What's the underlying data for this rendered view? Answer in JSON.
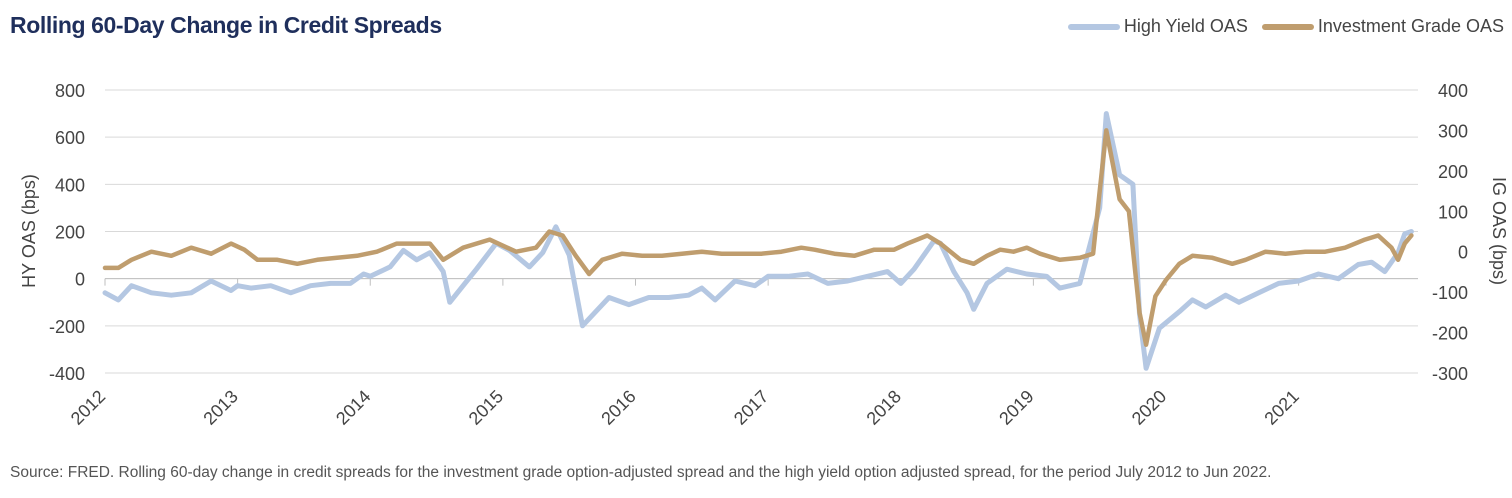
{
  "chart_data": {
    "type": "line",
    "title": "Rolling 60-Day Change in Credit Spreads",
    "ylabel_left": "HY OAS (bps)",
    "ylabel_right": "IG OAS (bps)",
    "ylim_left": [
      -400,
      800
    ],
    "ylim_right": [
      -300,
      400
    ],
    "yticks_left": [
      "800",
      "600",
      "400",
      "200",
      "0",
      "-200",
      "-400"
    ],
    "yticks_right": [
      "400",
      "300",
      "200",
      "100",
      "0",
      "-100",
      "-200",
      "-300"
    ],
    "xticks": [
      "2012",
      "2013",
      "2014",
      "2015",
      "2016",
      "2017",
      "2018",
      "2019",
      "2020",
      "2021"
    ],
    "grid": true,
    "legend_position": "top-right",
    "series": [
      {
        "name": "High Yield OAS",
        "axis": "left",
        "color": "#b4c7e2",
        "points": [
          [
            2012.0,
            -60
          ],
          [
            2012.1,
            -90
          ],
          [
            2012.2,
            -30
          ],
          [
            2012.35,
            -60
          ],
          [
            2012.5,
            -70
          ],
          [
            2012.65,
            -60
          ],
          [
            2012.8,
            -10
          ],
          [
            2012.95,
            -50
          ],
          [
            2013.0,
            -30
          ],
          [
            2013.1,
            -40
          ],
          [
            2013.25,
            -30
          ],
          [
            2013.4,
            -60
          ],
          [
            2013.55,
            -30
          ],
          [
            2013.7,
            -20
          ],
          [
            2013.85,
            -20
          ],
          [
            2013.95,
            20
          ],
          [
            2014.0,
            10
          ],
          [
            2014.15,
            50
          ],
          [
            2014.25,
            120
          ],
          [
            2014.35,
            80
          ],
          [
            2014.45,
            110
          ],
          [
            2014.55,
            30
          ],
          [
            2014.6,
            -100
          ],
          [
            2014.7,
            -30
          ],
          [
            2014.8,
            40
          ],
          [
            2014.95,
            150
          ],
          [
            2015.05,
            120
          ],
          [
            2015.2,
            50
          ],
          [
            2015.3,
            110
          ],
          [
            2015.4,
            220
          ],
          [
            2015.5,
            100
          ],
          [
            2015.6,
            -200
          ],
          [
            2015.7,
            -140
          ],
          [
            2015.8,
            -80
          ],
          [
            2015.95,
            -110
          ],
          [
            2016.1,
            -80
          ],
          [
            2016.25,
            -80
          ],
          [
            2016.4,
            -70
          ],
          [
            2016.5,
            -40
          ],
          [
            2016.6,
            -90
          ],
          [
            2016.75,
            -10
          ],
          [
            2016.9,
            -30
          ],
          [
            2017.0,
            10
          ],
          [
            2017.15,
            10
          ],
          [
            2017.3,
            20
          ],
          [
            2017.45,
            -20
          ],
          [
            2017.6,
            -10
          ],
          [
            2017.75,
            10
          ],
          [
            2017.9,
            30
          ],
          [
            2018.0,
            -20
          ],
          [
            2018.1,
            40
          ],
          [
            2018.25,
            160
          ],
          [
            2018.3,
            150
          ],
          [
            2018.4,
            30
          ],
          [
            2018.5,
            -60
          ],
          [
            2018.55,
            -130
          ],
          [
            2018.65,
            -20
          ],
          [
            2018.8,
            40
          ],
          [
            2018.95,
            20
          ],
          [
            2019.1,
            10
          ],
          [
            2019.2,
            -40
          ],
          [
            2019.35,
            -20
          ],
          [
            2019.5,
            300
          ],
          [
            2019.55,
            700
          ],
          [
            2019.65,
            440
          ],
          [
            2019.75,
            400
          ],
          [
            2019.8,
            -150
          ],
          [
            2019.85,
            -380
          ],
          [
            2019.95,
            -210
          ],
          [
            2020.1,
            -140
          ],
          [
            2020.2,
            -90
          ],
          [
            2020.3,
            -120
          ],
          [
            2020.45,
            -70
          ],
          [
            2020.55,
            -100
          ],
          [
            2020.7,
            -60
          ],
          [
            2020.85,
            -20
          ],
          [
            2021.0,
            -10
          ],
          [
            2021.15,
            20
          ],
          [
            2021.3,
            0
          ],
          [
            2021.45,
            60
          ],
          [
            2021.55,
            70
          ],
          [
            2021.65,
            30
          ],
          [
            2021.75,
            110
          ],
          [
            2021.8,
            190
          ],
          [
            2021.85,
            200
          ]
        ]
      },
      {
        "name": "Investment Grade OAS",
        "axis": "right",
        "color": "#bf9d6e",
        "points": [
          [
            2012.0,
            -40
          ],
          [
            2012.1,
            -40
          ],
          [
            2012.2,
            -20
          ],
          [
            2012.35,
            0
          ],
          [
            2012.5,
            -10
          ],
          [
            2012.65,
            10
          ],
          [
            2012.8,
            -5
          ],
          [
            2012.95,
            20
          ],
          [
            2013.05,
            5
          ],
          [
            2013.15,
            -20
          ],
          [
            2013.3,
            -20
          ],
          [
            2013.45,
            -30
          ],
          [
            2013.6,
            -20
          ],
          [
            2013.75,
            -15
          ],
          [
            2013.9,
            -10
          ],
          [
            2014.05,
            0
          ],
          [
            2014.2,
            20
          ],
          [
            2014.3,
            20
          ],
          [
            2014.45,
            20
          ],
          [
            2014.55,
            -20
          ],
          [
            2014.7,
            10
          ],
          [
            2014.9,
            30
          ],
          [
            2015.0,
            15
          ],
          [
            2015.1,
            0
          ],
          [
            2015.25,
            10
          ],
          [
            2015.35,
            50
          ],
          [
            2015.45,
            40
          ],
          [
            2015.55,
            -10
          ],
          [
            2015.65,
            -55
          ],
          [
            2015.75,
            -20
          ],
          [
            2015.9,
            -5
          ],
          [
            2016.05,
            -10
          ],
          [
            2016.2,
            -10
          ],
          [
            2016.35,
            -5
          ],
          [
            2016.5,
            0
          ],
          [
            2016.65,
            -5
          ],
          [
            2016.8,
            -5
          ],
          [
            2016.95,
            -5
          ],
          [
            2017.1,
            0
          ],
          [
            2017.25,
            10
          ],
          [
            2017.35,
            5
          ],
          [
            2017.5,
            -5
          ],
          [
            2017.65,
            -10
          ],
          [
            2017.8,
            5
          ],
          [
            2017.95,
            5
          ],
          [
            2018.05,
            20
          ],
          [
            2018.2,
            40
          ],
          [
            2018.3,
            20
          ],
          [
            2018.45,
            -20
          ],
          [
            2018.55,
            -30
          ],
          [
            2018.65,
            -10
          ],
          [
            2018.75,
            5
          ],
          [
            2018.85,
            0
          ],
          [
            2018.95,
            10
          ],
          [
            2019.05,
            -5
          ],
          [
            2019.2,
            -20
          ],
          [
            2019.35,
            -15
          ],
          [
            2019.45,
            -5
          ],
          [
            2019.5,
            150
          ],
          [
            2019.55,
            300
          ],
          [
            2019.65,
            130
          ],
          [
            2019.72,
            100
          ],
          [
            2019.8,
            -150
          ],
          [
            2019.85,
            -230
          ],
          [
            2019.92,
            -110
          ],
          [
            2020.0,
            -70
          ],
          [
            2020.1,
            -30
          ],
          [
            2020.2,
            -10
          ],
          [
            2020.35,
            -15
          ],
          [
            2020.5,
            -30
          ],
          [
            2020.6,
            -20
          ],
          [
            2020.75,
            0
          ],
          [
            2020.9,
            -5
          ],
          [
            2021.05,
            0
          ],
          [
            2021.2,
            0
          ],
          [
            2021.35,
            10
          ],
          [
            2021.5,
            30
          ],
          [
            2021.6,
            40
          ],
          [
            2021.7,
            10
          ],
          [
            2021.75,
            -20
          ],
          [
            2021.8,
            20
          ],
          [
            2021.85,
            40
          ]
        ]
      }
    ]
  },
  "source_note": "Source: FRED. Rolling 60-day change in credit spreads for the investment grade option-adjusted spread and the high yield option adjusted spread, for the period July 2012 to Jun 2022."
}
